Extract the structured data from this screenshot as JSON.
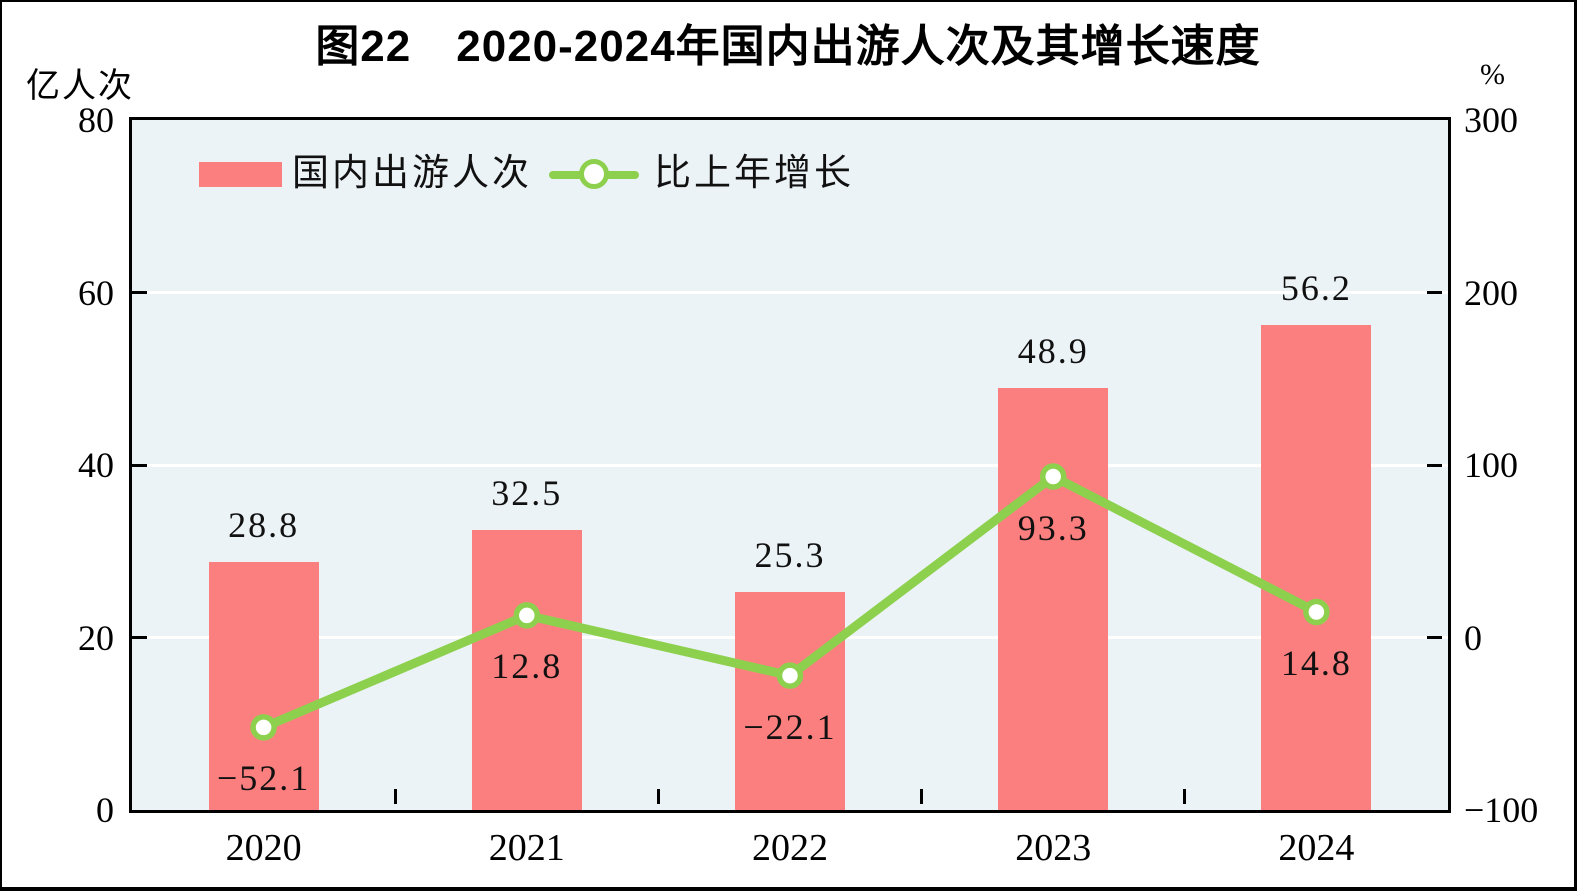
{
  "chart_data": {
    "type": "bar+line",
    "title": "图22　2020-2024年国内出游人次及其增长速度",
    "categories": [
      "2020",
      "2021",
      "2022",
      "2023",
      "2024"
    ],
    "series": [
      {
        "name": "国内出游人次",
        "type": "bar",
        "axis": "left",
        "color": "#fc7f7f",
        "values": [
          28.8,
          32.5,
          25.3,
          48.9,
          56.2
        ]
      },
      {
        "name": "比上年增长",
        "type": "line",
        "axis": "right",
        "color": "#8dd04e",
        "marker": "circle-white-fill",
        "values": [
          -52.1,
          12.8,
          -22.1,
          93.3,
          14.8
        ]
      }
    ],
    "left_axis": {
      "unit": "亿人次",
      "min": 0,
      "max": 80,
      "ticks": [
        80,
        60,
        40,
        20,
        0
      ]
    },
    "right_axis": {
      "unit": "%",
      "min": -100,
      "max": 300,
      "ticks": [
        300,
        200,
        100,
        0,
        -100
      ]
    },
    "grid": {
      "horizontal_gridlines": true,
      "gridline_color": "#ffffff"
    },
    "plot_background": "#ecf3f7",
    "legend_position": "top-left-inside"
  }
}
